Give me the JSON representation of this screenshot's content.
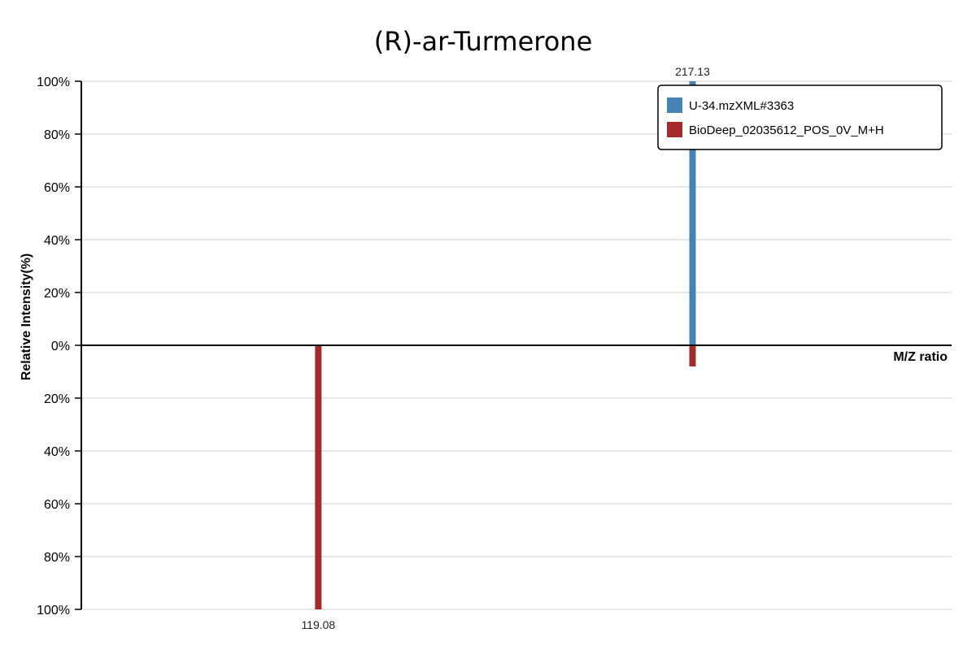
{
  "chart_data": {
    "type": "bar",
    "title": "(R)-ar-Turmerone",
    "xlabel": "M/Z ratio",
    "ylabel": "Relative Intensity(%)",
    "ylim_top": [
      0,
      100
    ],
    "ylim_bottom": [
      0,
      100
    ],
    "y_ticks_top": [
      "100%",
      "80%",
      "60%",
      "40%",
      "20%",
      "0%"
    ],
    "y_ticks_bottom": [
      "20%",
      "40%",
      "60%",
      "80%",
      "100%"
    ],
    "xlim": [
      57,
      285
    ],
    "grid": true,
    "legend_position": "top-right",
    "series": [
      {
        "name": "U-34.mzXML#3363",
        "color": "#4682b4",
        "direction": "up",
        "peaks": [
          {
            "mz": 217.13,
            "intensity": 100,
            "label": "217.13"
          }
        ]
      },
      {
        "name": "BioDeep_02035612_POS_0V_M+H",
        "color": "#a52a2a",
        "direction": "down",
        "peaks": [
          {
            "mz": 119.08,
            "intensity": 100,
            "label": "119.08"
          },
          {
            "mz": 217.13,
            "intensity": 8,
            "label": ""
          }
        ]
      }
    ]
  }
}
